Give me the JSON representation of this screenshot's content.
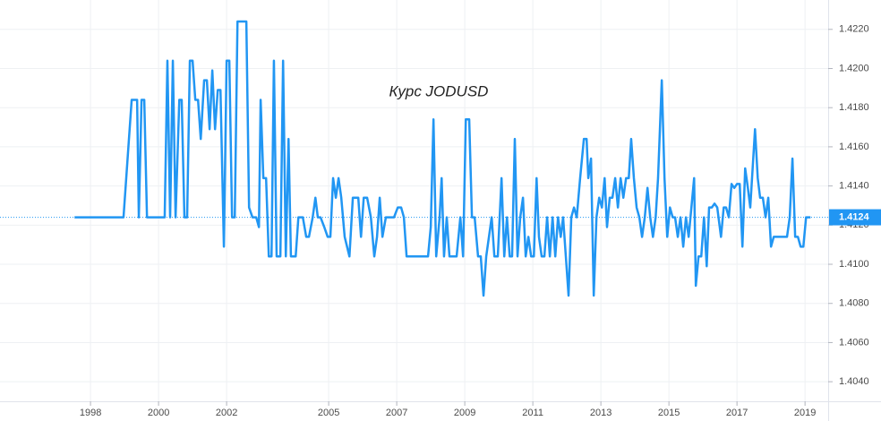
{
  "chart_data": {
    "type": "line",
    "title": "Курс JODUSD",
    "color": "#2196f3",
    "grid": true,
    "last_value": 1.4124,
    "xlim": [
      1995.34,
      2019.68
    ],
    "ylim": [
      1.403,
      1.4235
    ],
    "xticks": [
      1998,
      2000,
      2002,
      2005,
      2007,
      2009,
      2011,
      2013,
      2015,
      2017,
      2019
    ],
    "yticks": [
      {
        "value": 1.404,
        "label": "1.4040"
      },
      {
        "value": 1.406,
        "label": "1.4060"
      },
      {
        "value": 1.408,
        "label": "1.4080"
      },
      {
        "value": 1.41,
        "label": "1.4100"
      },
      {
        "value": 1.412,
        "label": "1.4120"
      },
      {
        "value": 1.414,
        "label": "1.4140"
      },
      {
        "value": 1.416,
        "label": "1.4160"
      },
      {
        "value": 1.418,
        "label": "1.4180"
      },
      {
        "value": 1.42,
        "label": "1.4200"
      },
      {
        "value": 1.422,
        "label": "1.4220"
      }
    ],
    "x": [
      1997.53,
      1998.97,
      1999.21,
      1999.37,
      1999.42,
      1999.5,
      1999.58,
      1999.66,
      2000.18,
      2000.26,
      2000.34,
      2000.42,
      2000.5,
      2000.61,
      2000.68,
      2000.76,
      2000.84,
      2000.92,
      2001.0,
      2001.08,
      2001.16,
      2001.24,
      2001.34,
      2001.42,
      2001.5,
      2001.58,
      2001.66,
      2001.74,
      2001.82,
      2001.92,
      2002.0,
      2002.08,
      2002.16,
      2002.24,
      2002.32,
      2002.58,
      2002.66,
      2002.76,
      2002.87,
      2002.95,
      2003.0,
      2003.08,
      2003.16,
      2003.24,
      2003.32,
      2003.39,
      2003.47,
      2003.58,
      2003.66,
      2003.74,
      2003.82,
      2003.89,
      2004.03,
      2004.11,
      2004.24,
      2004.34,
      2004.42,
      2004.53,
      2004.61,
      2004.68,
      2004.76,
      2004.87,
      2004.97,
      2005.05,
      2005.13,
      2005.21,
      2005.29,
      2005.37,
      2005.47,
      2005.61,
      2005.71,
      2005.87,
      2005.95,
      2006.03,
      2006.13,
      2006.24,
      2006.34,
      2006.42,
      2006.5,
      2006.58,
      2006.68,
      2006.92,
      2007.03,
      2007.13,
      2007.21,
      2007.29,
      2007.92,
      2008.0,
      2008.08,
      2008.16,
      2008.26,
      2008.32,
      2008.39,
      2008.47,
      2008.55,
      2008.76,
      2008.87,
      2008.95,
      2009.03,
      2009.13,
      2009.21,
      2009.29,
      2009.39,
      2009.47,
      2009.55,
      2009.63,
      2009.71,
      2009.79,
      2009.87,
      2009.97,
      2010.08,
      2010.16,
      2010.24,
      2010.32,
      2010.39,
      2010.47,
      2010.55,
      2010.63,
      2010.71,
      2010.79,
      2010.87,
      2010.95,
      2011.03,
      2011.11,
      2011.18,
      2011.26,
      2011.34,
      2011.42,
      2011.5,
      2011.58,
      2011.66,
      2011.74,
      2011.82,
      2011.89,
      2011.97,
      2012.05,
      2012.13,
      2012.21,
      2012.29,
      2012.39,
      2012.5,
      2012.58,
      2012.63,
      2012.71,
      2012.79,
      2012.87,
      2012.95,
      2013.03,
      2013.11,
      2013.18,
      2013.26,
      2013.34,
      2013.42,
      2013.5,
      2013.58,
      2013.66,
      2013.74,
      2013.82,
      2013.89,
      2013.97,
      2014.05,
      2014.13,
      2014.21,
      2014.29,
      2014.37,
      2014.45,
      2014.53,
      2014.61,
      2014.68,
      2014.79,
      2014.87,
      2014.95,
      2015.03,
      2015.11,
      2015.18,
      2015.26,
      2015.34,
      2015.42,
      2015.5,
      2015.58,
      2015.66,
      2015.74,
      2015.79,
      2015.87,
      2015.95,
      2016.03,
      2016.11,
      2016.18,
      2016.26,
      2016.34,
      2016.42,
      2016.53,
      2016.61,
      2016.68,
      2016.76,
      2016.84,
      2016.92,
      2017.0,
      2017.08,
      2017.16,
      2017.24,
      2017.32,
      2017.39,
      2017.53,
      2017.61,
      2017.68,
      2017.76,
      2017.84,
      2017.92,
      2018.0,
      2018.08,
      2018.47,
      2018.55,
      2018.63,
      2018.71,
      2018.79,
      2018.87,
      2018.95,
      2019.03,
      2019.16
    ],
    "values": [
      1.4124,
      1.4124,
      1.4184,
      1.4184,
      1.4124,
      1.4184,
      1.4184,
      1.4124,
      1.4124,
      1.4204,
      1.4124,
      1.4204,
      1.4124,
      1.4184,
      1.4184,
      1.4124,
      1.4124,
      1.4204,
      1.4204,
      1.4184,
      1.4184,
      1.4164,
      1.4194,
      1.4194,
      1.4169,
      1.4199,
      1.4169,
      1.4189,
      1.4189,
      1.4109,
      1.4204,
      1.4204,
      1.4124,
      1.4124,
      1.4224,
      1.4224,
      1.4129,
      1.4124,
      1.4124,
      1.4119,
      1.4184,
      1.4144,
      1.4144,
      1.4104,
      1.4104,
      1.4204,
      1.4104,
      1.4104,
      1.4204,
      1.4104,
      1.4164,
      1.4104,
      1.4104,
      1.4124,
      1.4124,
      1.4114,
      1.4114,
      1.4124,
      1.4134,
      1.4124,
      1.4124,
      1.4119,
      1.4114,
      1.4114,
      1.4144,
      1.4134,
      1.4144,
      1.4134,
      1.4114,
      1.4104,
      1.4134,
      1.4134,
      1.4114,
      1.4134,
      1.4134,
      1.4124,
      1.4104,
      1.4114,
      1.4134,
      1.4114,
      1.4124,
      1.4124,
      1.4129,
      1.4129,
      1.4124,
      1.4104,
      1.4104,
      1.4119,
      1.4174,
      1.4104,
      1.4124,
      1.4144,
      1.4104,
      1.4124,
      1.4104,
      1.4104,
      1.4124,
      1.4104,
      1.4174,
      1.4174,
      1.4124,
      1.4124,
      1.4104,
      1.4104,
      1.4084,
      1.4104,
      1.4114,
      1.4124,
      1.4104,
      1.4104,
      1.4144,
      1.4104,
      1.4124,
      1.4104,
      1.4104,
      1.4164,
      1.4104,
      1.4124,
      1.4134,
      1.4104,
      1.4114,
      1.4104,
      1.4104,
      1.4144,
      1.4114,
      1.4104,
      1.4104,
      1.4124,
      1.4104,
      1.4124,
      1.4104,
      1.4124,
      1.4114,
      1.4124,
      1.4104,
      1.4084,
      1.4124,
      1.4129,
      1.4124,
      1.4144,
      1.4164,
      1.4164,
      1.4144,
      1.4154,
      1.4084,
      1.4124,
      1.4134,
      1.4129,
      1.4144,
      1.4119,
      1.4134,
      1.4134,
      1.4144,
      1.4129,
      1.4144,
      1.4134,
      1.4144,
      1.4144,
      1.4164,
      1.4144,
      1.4129,
      1.4124,
      1.4114,
      1.4124,
      1.4139,
      1.4124,
      1.4114,
      1.4124,
      1.4144,
      1.4194,
      1.4144,
      1.4114,
      1.4129,
      1.4124,
      1.4124,
      1.4114,
      1.4124,
      1.4109,
      1.4124,
      1.4114,
      1.4129,
      1.4144,
      1.4089,
      1.4104,
      1.4104,
      1.4124,
      1.4099,
      1.4129,
      1.4129,
      1.4131,
      1.4129,
      1.4114,
      1.4129,
      1.4129,
      1.4124,
      1.4141,
      1.4139,
      1.4141,
      1.4141,
      1.4109,
      1.4149,
      1.4139,
      1.4129,
      1.4169,
      1.4144,
      1.4134,
      1.4134,
      1.4124,
      1.4134,
      1.4109,
      1.4114,
      1.4114,
      1.4124,
      1.4154,
      1.4114,
      1.4114,
      1.4109,
      1.4109,
      1.4124,
      1.4124
    ]
  }
}
